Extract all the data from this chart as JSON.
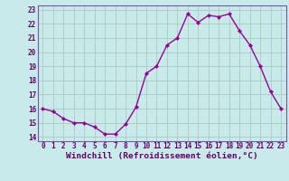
{
  "x": [
    0,
    1,
    2,
    3,
    4,
    5,
    6,
    7,
    8,
    9,
    10,
    11,
    12,
    13,
    14,
    15,
    16,
    17,
    18,
    19,
    20,
    21,
    22,
    23
  ],
  "y": [
    16.0,
    15.8,
    15.3,
    15.0,
    15.0,
    14.7,
    14.2,
    14.2,
    14.9,
    16.1,
    18.5,
    19.0,
    20.5,
    21.0,
    22.7,
    22.1,
    22.6,
    22.5,
    22.7,
    21.5,
    20.5,
    19.0,
    17.2,
    16.0
  ],
  "line_color": "#990099",
  "marker_color": "#990099",
  "bg_color": "#c8eaea",
  "grid_color": "#aaccbb",
  "xlabel": "Windchill (Refroidissement éolien,°C)",
  "ylim": [
    13.7,
    23.3
  ],
  "xlim": [
    -0.5,
    23.5
  ],
  "yticks": [
    14,
    15,
    16,
    17,
    18,
    19,
    20,
    21,
    22,
    23
  ],
  "xticks": [
    0,
    1,
    2,
    3,
    4,
    5,
    6,
    7,
    8,
    9,
    10,
    11,
    12,
    13,
    14,
    15,
    16,
    17,
    18,
    19,
    20,
    21,
    22,
    23
  ],
  "tick_label_color": "#660066",
  "tick_fontsize": 5.5,
  "xlabel_fontsize": 6.8,
  "xlabel_color": "#660066",
  "marker_size": 2.2,
  "line_width": 1.0,
  "axis_border_color": "#7755aa"
}
